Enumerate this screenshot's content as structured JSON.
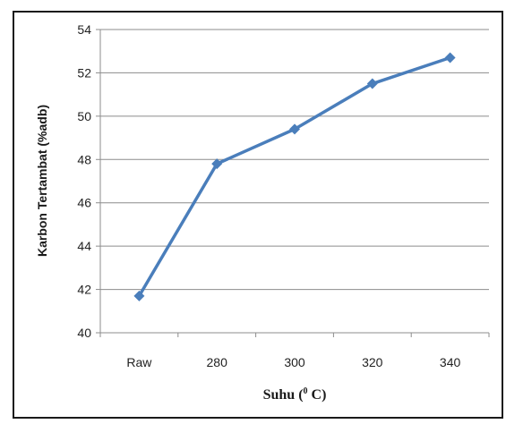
{
  "chart_data": {
    "type": "line",
    "categories": [
      "Raw",
      "280",
      "300",
      "320",
      "340"
    ],
    "series": [
      {
        "values": [
          41.7,
          47.8,
          49.4,
          51.5,
          52.7
        ],
        "color": "#4a7ebb"
      }
    ],
    "title": "",
    "xlabel": "Suhu (",
    "xlabel_sup": "0",
    "xlabel_end": " C)",
    "ylabel": "Karbon Tertambat (%adb)",
    "ylim": [
      40,
      54
    ],
    "yticks": [
      40,
      42,
      44,
      46,
      48,
      50,
      52,
      54
    ],
    "grid": true,
    "marker": "diamond"
  }
}
